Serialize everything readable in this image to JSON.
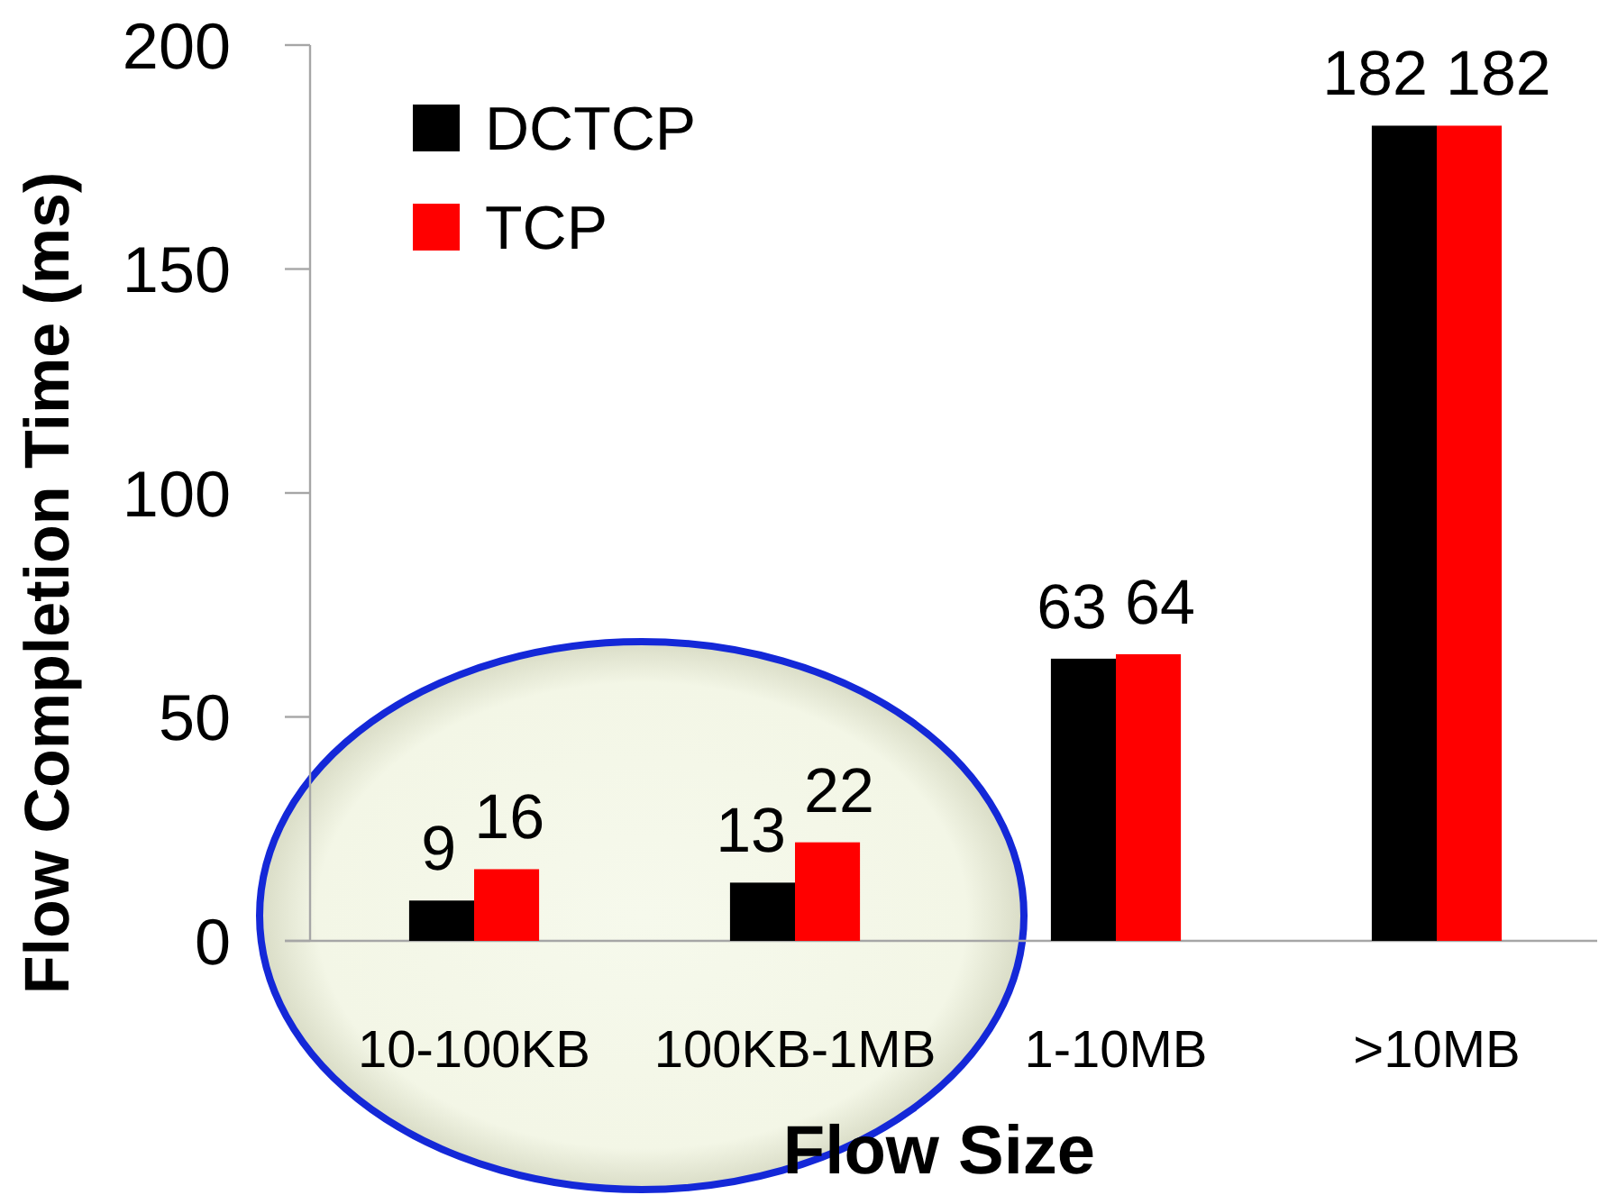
{
  "chart_data": {
    "type": "bar",
    "xlabel": "Flow Size",
    "ylabel": "Flow Completion Time (ms)",
    "categories": [
      "10-100KB",
      "100KB-1MB",
      "1-10MB",
      ">10MB"
    ],
    "series": [
      {
        "name": "DCTCP",
        "color": "#000000",
        "values": [
          9,
          13,
          63,
          182
        ]
      },
      {
        "name": "TCP",
        "color": "#ff0000",
        "values": [
          16,
          22,
          64,
          182
        ]
      }
    ],
    "ylim": [
      0,
      200
    ],
    "yticks": [
      0,
      50,
      100,
      150,
      200
    ],
    "legend": "top left",
    "data_labels": true
  }
}
